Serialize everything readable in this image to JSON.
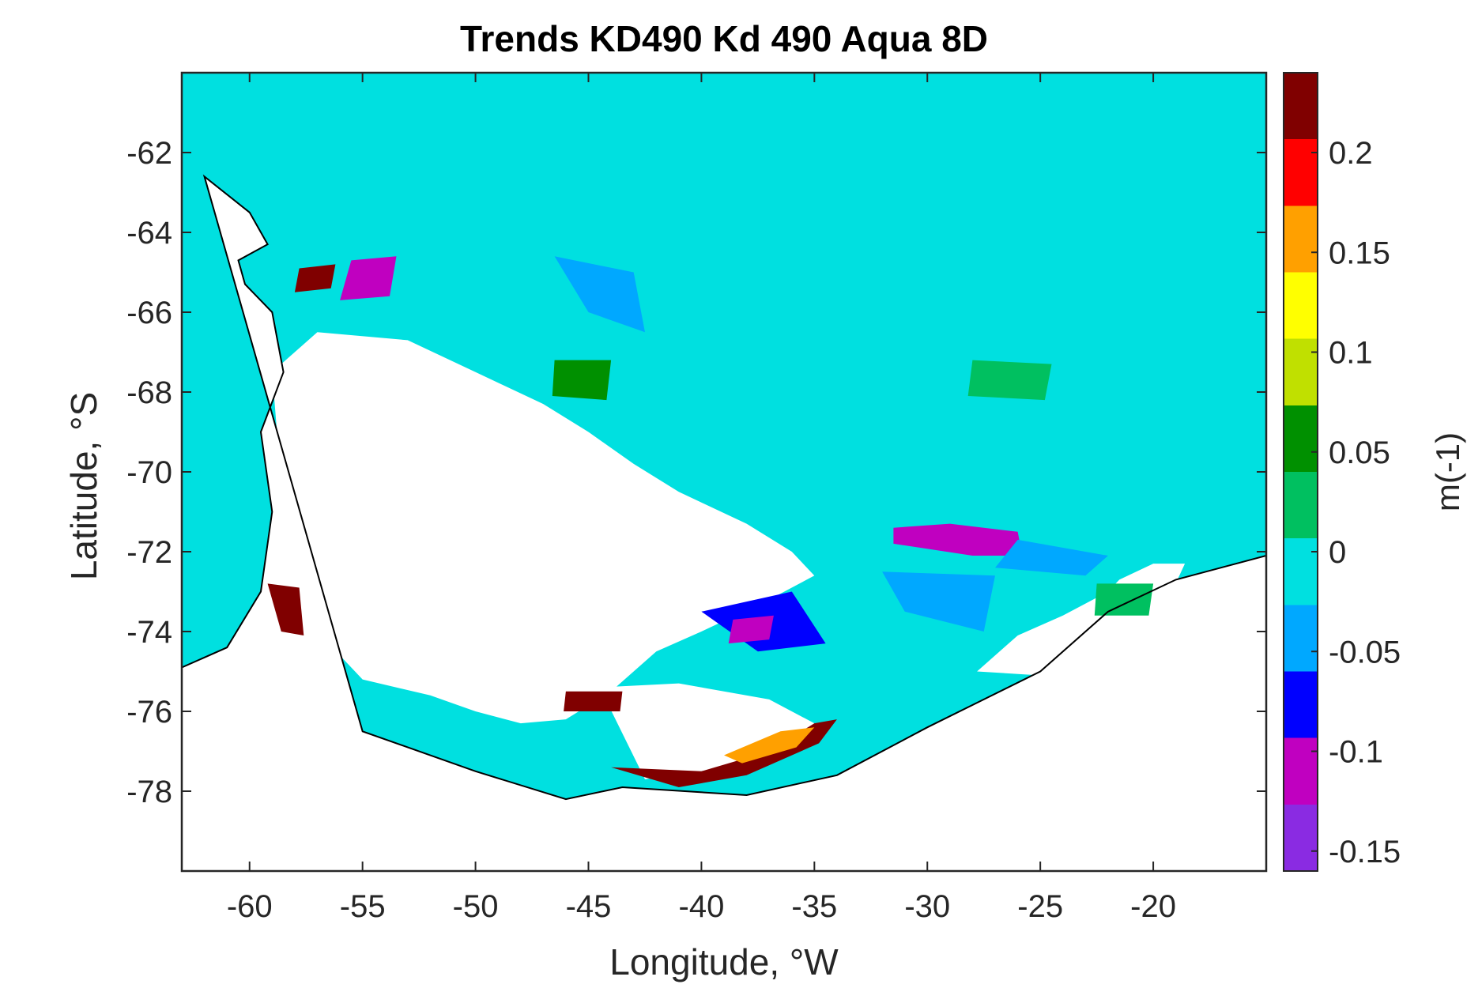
{
  "chart_data": {
    "type": "heatmap",
    "title": "Trends KD490 Kd 490 Aqua 8D",
    "xlabel": "Longitude, °W",
    "ylabel": "Latitude, °S",
    "xlim": [
      -63,
      -15
    ],
    "ylim": [
      -80,
      -60
    ],
    "x_ticks": [
      -60,
      -55,
      -50,
      -45,
      -40,
      -35,
      -30,
      -25,
      -20
    ],
    "y_ticks": [
      -62,
      -64,
      -66,
      -68,
      -70,
      -72,
      -74,
      -76,
      -78
    ],
    "colorbar": {
      "label": "m(-1)",
      "range": [
        -0.16,
        0.24
      ],
      "ticks": [
        -0.15,
        -0.1,
        -0.05,
        0,
        0.05,
        0.1,
        0.15,
        0.2
      ],
      "tick_labels": [
        "-0.15",
        "-0.1",
        "-0.05",
        "0",
        "0.05",
        "0.1",
        "0.15",
        "0.2"
      ],
      "colormap": [
        "#8a2be2",
        "#c000c0",
        "#0000ff",
        "#00a8ff",
        "#00e0e0",
        "#00c060",
        "#009000",
        "#c0e000",
        "#ffff00",
        "#ffa000",
        "#ff0000",
        "#800000"
      ]
    },
    "background_value": -0.01,
    "no_data_color": "#ffffff",
    "features": [
      {
        "name": "coast",
        "lon": [
          -63,
          -61,
          -59.5,
          -59,
          -59.5,
          -58.5,
          -59,
          -60.2,
          -60.5,
          -59.2,
          -60,
          -62,
          -55,
          -50,
          -46,
          -43.5,
          -38,
          -34,
          -30,
          -25,
          -22,
          -19,
          -15
        ]
      },
      {
        "name": "coast",
        "lat": [
          -74.9,
          -74.4,
          -73,
          -71,
          -69,
          -67.5,
          -66,
          -65.3,
          -64.7,
          -64.3,
          -63.5,
          -62.6,
          -76.5,
          -77.5,
          -78.2,
          -77.9,
          -78.1,
          -77.6,
          -76.4,
          -75,
          -73.5,
          -72.7,
          -72.1
        ]
      }
    ],
    "regions": [
      {
        "kind": "nodata",
        "lon": [
          -59,
          -57,
          -53,
          -50,
          -47,
          -45,
          -43,
          -41,
          -38,
          -36,
          -35,
          -37,
          -40,
          -42,
          -44,
          -46,
          -48,
          -50,
          -52,
          -55,
          -57,
          -58.5,
          -59
        ],
        "lat": [
          -67.5,
          -66.5,
          -66.7,
          -67.5,
          -68.3,
          -69,
          -69.8,
          -70.5,
          -71.3,
          -72,
          -72.6,
          -73.2,
          -74,
          -74.5,
          -75.5,
          -76.2,
          -76.3,
          -76,
          -75.6,
          -75.2,
          -74,
          -71,
          -67.5
        ]
      },
      {
        "kind": "nodata",
        "lon": [
          -44.5,
          -41,
          -37,
          -35,
          -35.2,
          -37.5,
          -40,
          -42.5,
          -44.5
        ],
        "lat": [
          -75.4,
          -75.3,
          -75.7,
          -76.3,
          -76.9,
          -77.2,
          -77.5,
          -77.7,
          -75.4
        ]
      },
      {
        "kind": "nodata",
        "lon": [
          -18.6,
          -20,
          -21.5,
          -22,
          -24,
          -26,
          -27.8,
          -25,
          -22,
          -19.5,
          -18.6
        ],
        "lat": [
          -72.3,
          -72.3,
          -72.7,
          -73,
          -73.6,
          -74.1,
          -75,
          -75.1,
          -74.7,
          -73.4,
          -72.3
        ]
      },
      {
        "kind": "trend",
        "value": 0.25,
        "lon": [
          -44,
          -40,
          -37,
          -35,
          -34,
          -34.8,
          -38,
          -41,
          -44
        ],
        "lat": [
          -77.4,
          -77.5,
          -77,
          -76.3,
          -76.2,
          -76.8,
          -77.6,
          -77.9,
          -77.4
        ]
      },
      {
        "kind": "trend",
        "value": 0.14,
        "lon": [
          -39,
          -36.5,
          -35,
          -35.8,
          -38.2,
          -39
        ],
        "lat": [
          -77.1,
          -76.5,
          -76.4,
          -76.9,
          -77.3,
          -77.1
        ]
      },
      {
        "kind": "trend",
        "value": 0.25,
        "lon": [
          -59.2,
          -57.8,
          -57.6,
          -58.6,
          -59.2
        ],
        "lat": [
          -72.8,
          -72.9,
          -74.1,
          -74,
          -72.8
        ]
      },
      {
        "kind": "trend",
        "value": -0.12,
        "lon": [
          -31.5,
          -29,
          -26,
          -25.8,
          -28,
          -31.5,
          -31.5
        ],
        "lat": [
          -71.4,
          -71.3,
          -71.5,
          -72.1,
          -72.1,
          -71.8,
          -71.4
        ]
      },
      {
        "kind": "trend",
        "value": -0.06,
        "lon": [
          -26,
          -22,
          -23,
          -27,
          -26
        ],
        "lat": [
          -71.7,
          -72.1,
          -72.6,
          -72.4,
          -71.7
        ]
      },
      {
        "kind": "trend",
        "value": -0.06,
        "lon": [
          -32,
          -27,
          -27.5,
          -31,
          -32
        ],
        "lat": [
          -72.5,
          -72.6,
          -74,
          -73.5,
          -72.5
        ]
      },
      {
        "kind": "trend",
        "value": -0.07,
        "lon": [
          -40,
          -36,
          -34.5,
          -37.5,
          -40
        ],
        "lat": [
          -73.5,
          -73,
          -74.3,
          -74.5,
          -73.5
        ]
      },
      {
        "kind": "trend",
        "value": -0.05,
        "lon": [
          -46.5,
          -43,
          -42.5,
          -45,
          -46.5
        ],
        "lat": [
          -64.6,
          -65,
          -66.5,
          -66,
          -64.6
        ]
      },
      {
        "kind": "trend",
        "value": 0.05,
        "lon": [
          -46.5,
          -44,
          -44.2,
          -46.6,
          -46.5
        ],
        "lat": [
          -67.2,
          -67.2,
          -68.2,
          -68.1,
          -67.2
        ]
      },
      {
        "kind": "trend",
        "value": 0.03,
        "lon": [
          -22.5,
          -20,
          -20.2,
          -22.6,
          -22.5
        ],
        "lat": [
          -72.8,
          -72.8,
          -73.6,
          -73.6,
          -72.8
        ]
      },
      {
        "kind": "trend",
        "value": 0.02,
        "lon": [
          -28,
          -24.5,
          -24.8,
          -28.2,
          -28
        ],
        "lat": [
          -67.2,
          -67.3,
          -68.2,
          -68.1,
          -67.2
        ]
      },
      {
        "kind": "trend",
        "value": -0.1,
        "lon": [
          -55.5,
          -53.5,
          -53.8,
          -56,
          -55.5
        ],
        "lat": [
          -64.7,
          -64.6,
          -65.6,
          -65.7,
          -64.7
        ]
      },
      {
        "kind": "trend",
        "value": 0.25,
        "lon": [
          -57.8,
          -56.2,
          -56.4,
          -58,
          -57.8
        ],
        "lat": [
          -64.9,
          -64.8,
          -65.4,
          -65.5,
          -64.9
        ]
      },
      {
        "kind": "trend",
        "value": 0.25,
        "lon": [
          -46,
          -43.5,
          -43.6,
          -46.1,
          -46
        ],
        "lat": [
          -75.5,
          -75.5,
          -76,
          -76,
          -75.5
        ]
      },
      {
        "kind": "trend",
        "value": -0.1,
        "lon": [
          -38.6,
          -36.8,
          -37,
          -38.8,
          -38.6
        ],
        "lat": [
          -73.7,
          -73.6,
          -74.2,
          -74.3,
          -73.7
        ]
      }
    ]
  }
}
